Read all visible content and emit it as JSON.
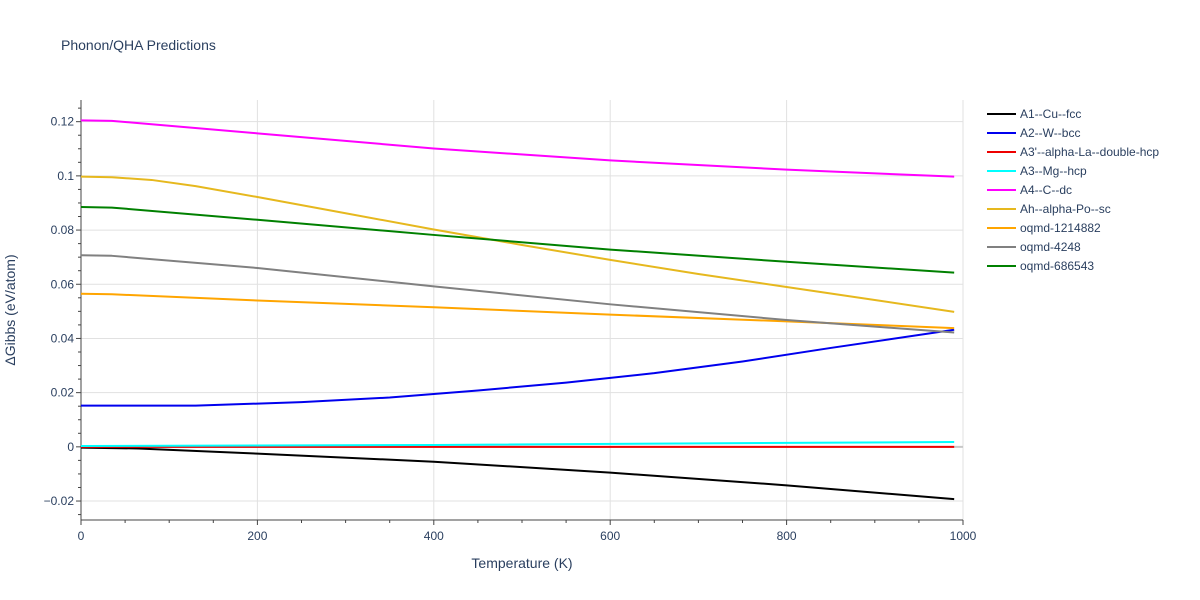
{
  "chart_data": {
    "type": "line",
    "title": "Phonon/QHA Predictions",
    "xlabel": "Temperature (K)",
    "ylabel": "ΔGibbs (eV/atom)",
    "xlim": [
      0,
      1000
    ],
    "ylim": [
      -0.027,
      0.128
    ],
    "xticks": [
      0,
      200,
      400,
      600,
      800,
      1000
    ],
    "xtick_labels": [
      "0",
      "200",
      "400",
      "600",
      "800",
      "1000"
    ],
    "yticks": [
      -0.02,
      0,
      0.02,
      0.04,
      0.06,
      0.08,
      0.1,
      0.12
    ],
    "ytick_labels": [
      "−0.02",
      "0",
      "0.02",
      "0.04",
      "0.06",
      "0.08",
      "0.1",
      "0.12"
    ],
    "grid": true,
    "legend": "right",
    "series": [
      {
        "name": "A1--Cu--fcc",
        "color": "#000000",
        "x": [
          0,
          65,
          200,
          400,
          600,
          800,
          990
        ],
        "y": [
          -0.0003,
          -0.0006,
          -0.0025,
          -0.0055,
          -0.0095,
          -0.0142,
          -0.0193
        ]
      },
      {
        "name": "A2--W--bcc",
        "color": "#0000ee",
        "x": [
          0,
          130,
          250,
          350,
          450,
          550,
          650,
          750,
          850,
          990
        ],
        "y": [
          0.0152,
          0.0152,
          0.0165,
          0.0182,
          0.0208,
          0.0237,
          0.0272,
          0.0315,
          0.0365,
          0.0432
        ]
      },
      {
        "name": "A3'--alpha-La--double-hcp",
        "color": "#ee0000",
        "x": [
          0,
          990
        ],
        "y": [
          0.0,
          0.0
        ]
      },
      {
        "name": "A3--Mg--hcp",
        "color": "#00ffff",
        "x": [
          0,
          400,
          990
        ],
        "y": [
          0.0003,
          0.0007,
          0.0018
        ]
      },
      {
        "name": "A4--C--dc",
        "color": "#ff00ff",
        "x": [
          0,
          35,
          200,
          400,
          600,
          800,
          990
        ],
        "y": [
          0.1205,
          0.1203,
          0.1157,
          0.1101,
          0.1057,
          0.1023,
          0.0997
        ]
      },
      {
        "name": "Ah--alpha-Po--sc",
        "color": "#e6b81e",
        "x": [
          0,
          35,
          80,
          130,
          200,
          300,
          400,
          500,
          600,
          700,
          800,
          900,
          990
        ],
        "y": [
          0.0997,
          0.0995,
          0.0985,
          0.0962,
          0.0922,
          0.0862,
          0.0802,
          0.0745,
          0.069,
          0.0638,
          0.059,
          0.0542,
          0.0498
        ]
      },
      {
        "name": "oqmd-1214882",
        "color": "#ffa500",
        "x": [
          0,
          35,
          200,
          400,
          600,
          800,
          990
        ],
        "y": [
          0.0565,
          0.0563,
          0.054,
          0.0515,
          0.0488,
          0.0463,
          0.0438
        ]
      },
      {
        "name": "oqmd-4248",
        "color": "#808080",
        "x": [
          0,
          35,
          200,
          400,
          600,
          800,
          990
        ],
        "y": [
          0.0707,
          0.0705,
          0.066,
          0.0592,
          0.0526,
          0.0468,
          0.0422
        ]
      },
      {
        "name": "oqmd-686543",
        "color": "#008000",
        "x": [
          0,
          35,
          200,
          400,
          600,
          800,
          990
        ],
        "y": [
          0.0885,
          0.0883,
          0.0838,
          0.0782,
          0.0728,
          0.0683,
          0.0643
        ]
      }
    ]
  }
}
